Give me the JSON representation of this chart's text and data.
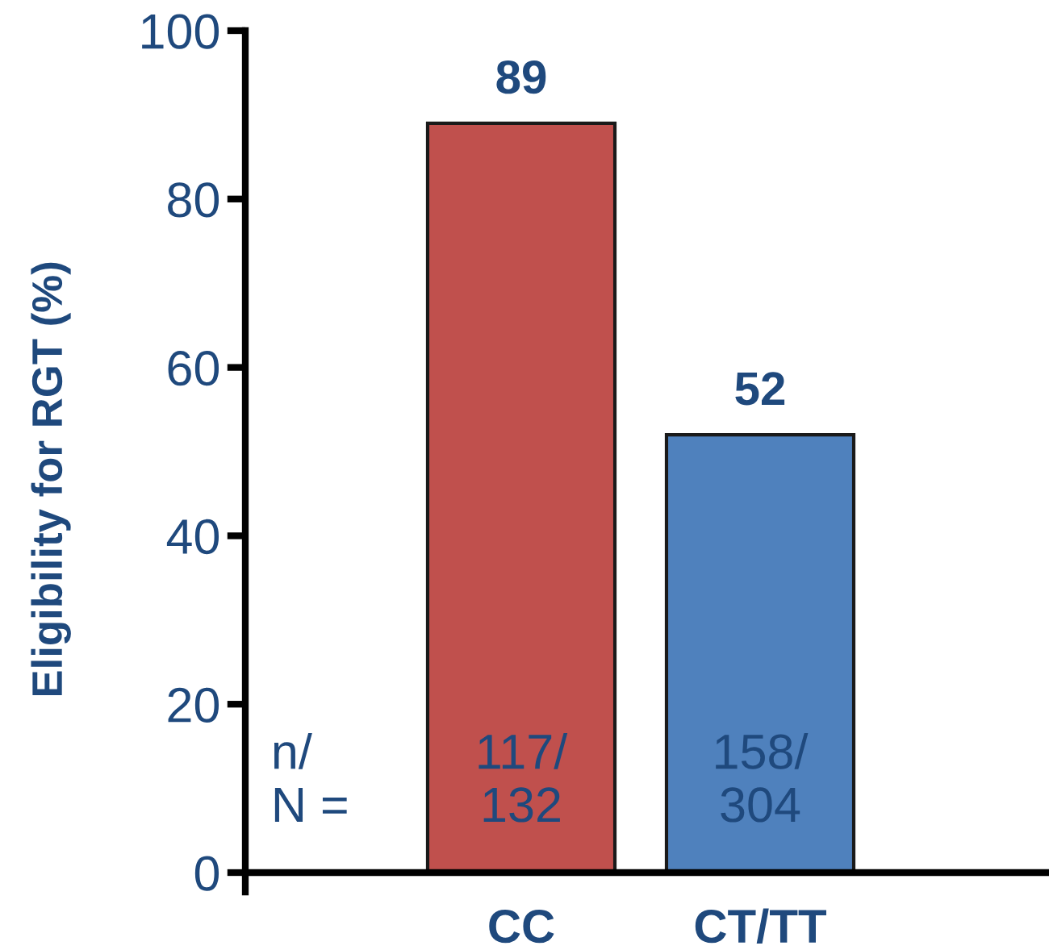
{
  "chart_data": {
    "type": "bar",
    "ylabel": "Eligibility for RGT (%)",
    "categories": [
      "CC",
      "CT/TT"
    ],
    "values": [
      89,
      52
    ],
    "colors": [
      "#c0504d",
      "#4f81bd"
    ],
    "ylim": [
      0,
      100
    ],
    "yticks": [
      0,
      20,
      40,
      60,
      80,
      100
    ],
    "data_labels": true,
    "annotations": [
      "n/\nN =",
      "117/\n132",
      "158/\n304"
    ]
  }
}
